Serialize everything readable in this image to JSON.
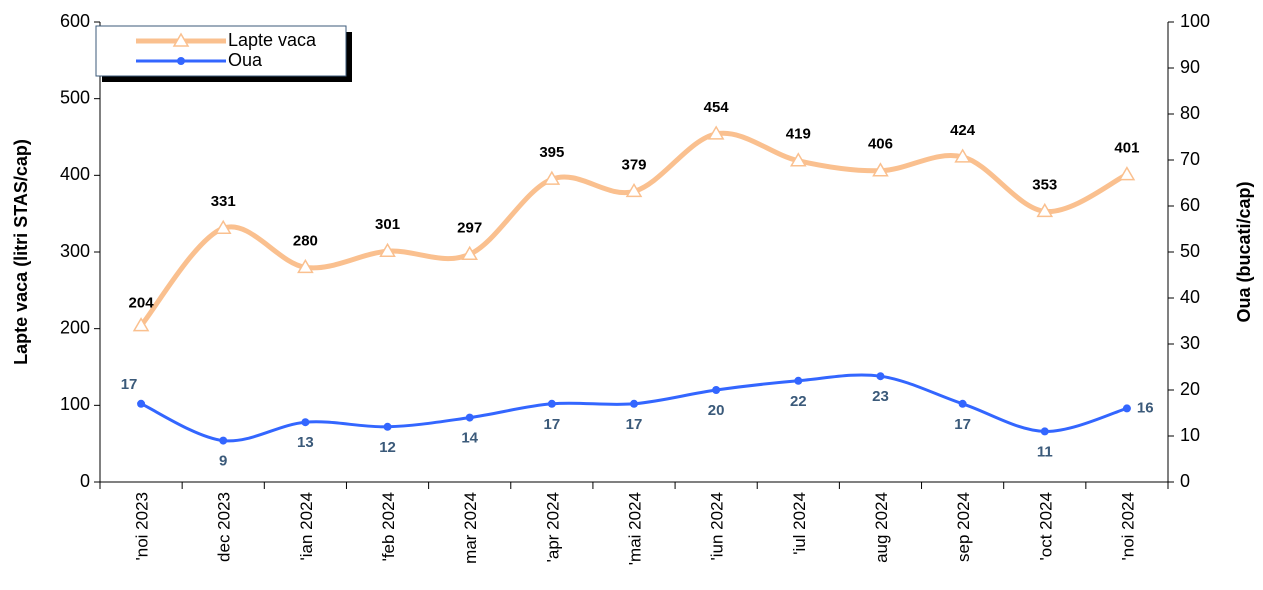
{
  "chart_data": {
    "type": "line",
    "categories": [
      "'noi 2023",
      "dec 2023",
      "'ian 2024",
      "'feb 2024",
      "mar 2024",
      "'apr 2024",
      "'mai 2024",
      "'iun 2024",
      "'iul 2024",
      "aug 2024",
      "sep 2024",
      "'oct 2024",
      "'noi 2024"
    ],
    "series": [
      {
        "name": "Lapte vaca",
        "color": "#fac08f",
        "values": [
          204,
          331,
          280,
          301,
          297,
          395,
          379,
          454,
          419,
          406,
          424,
          353,
          401
        ]
      },
      {
        "name": "Oua",
        "color": "#3366ff",
        "axis": "y2",
        "values": [
          17,
          9,
          13,
          12,
          14,
          17,
          17,
          20,
          22,
          23,
          17,
          11,
          16
        ]
      }
    ],
    "y_label": "Lapte vaca (litri STAS/cap)",
    "y2_label": "Oua (bucati/cap)",
    "ylim": [
      0,
      600
    ],
    "yticks": [
      0,
      100,
      200,
      300,
      400,
      500,
      600
    ],
    "y2lim": [
      0,
      100
    ],
    "y2ticks": [
      0,
      10,
      20,
      30,
      40,
      50,
      60,
      70,
      80,
      90,
      100
    ],
    "legend": "top-left",
    "smooth": true
  }
}
